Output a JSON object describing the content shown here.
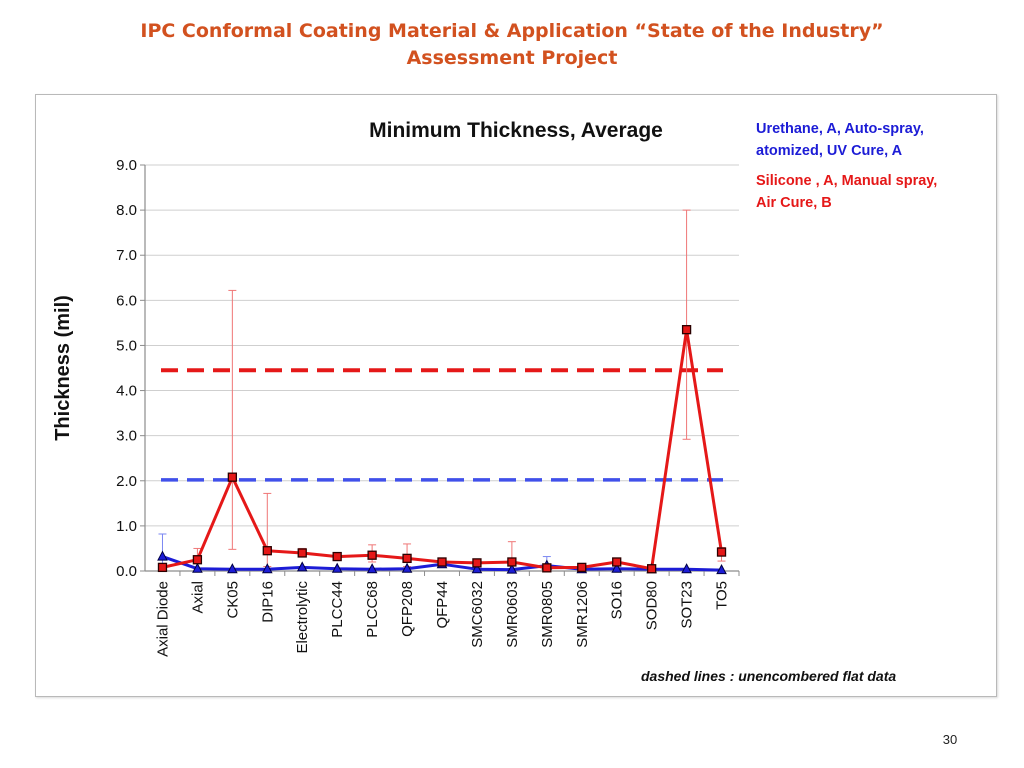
{
  "slide": {
    "title_line1": "IPC Conformal Coating Material & Application “State of the Industry”",
    "title_line2": "Assessment Project",
    "page_number": "30"
  },
  "colors": {
    "title": "#d2511f",
    "urethane": "#1c1cd6",
    "silicone": "#e51818",
    "urethane_dashed": "#4050ea",
    "silicone_dashed": "#e51818"
  },
  "chart_data": {
    "type": "line",
    "title": "Minimum Thickness, Average",
    "ylabel": "Thickness (mil)",
    "xlabel": "",
    "ylim": [
      0,
      9
    ],
    "yticks": [
      "0.0",
      "1.0",
      "2.0",
      "3.0",
      "4.0",
      "5.0",
      "6.0",
      "7.0",
      "8.0",
      "9.0"
    ],
    "grid": true,
    "legend_position": "top-right",
    "categories": [
      "Axial Diode",
      "Axial",
      "CK05",
      "DIP16",
      "Electrolytic",
      "PLCC44",
      "PLCC68",
      "QFP208",
      "QFP44",
      "SMC6032",
      "SMR0603",
      "SMR0805",
      "SMR1206",
      "SO16",
      "SOD80",
      "SOT23",
      "TO5"
    ],
    "series": [
      {
        "name": "Urethane, A, Auto-spray, atomized, UV Cure, A",
        "legend_lines": [
          "Urethane, A, Auto-spray,",
          "atomized, UV Cure, A"
        ],
        "color": "#1c1cd6",
        "marker": "triangle",
        "values": [
          0.32,
          0.05,
          0.04,
          0.04,
          0.08,
          0.05,
          0.04,
          0.05,
          0.15,
          0.04,
          0.03,
          0.12,
          0.04,
          0.05,
          0.04,
          0.04,
          0.02
        ],
        "error_high": [
          0.82,
          0.1,
          0.06,
          0.06,
          0.12,
          0.08,
          0.06,
          0.08,
          0.22,
          0.06,
          0.05,
          0.32,
          0.06,
          0.08,
          0.06,
          0.06,
          0.04
        ],
        "error_low": [
          0.0,
          0.0,
          0.02,
          0.02,
          0.04,
          0.02,
          0.02,
          0.02,
          0.08,
          0.02,
          0.01,
          0.0,
          0.02,
          0.02,
          0.02,
          0.02,
          0.0
        ],
        "reference_line": 2.02
      },
      {
        "name": "Silicone , A, Manual spray, Air Cure, B",
        "legend_lines": [
          "Silicone , A, Manual spray,",
          "Air Cure, B"
        ],
        "color": "#e51818",
        "marker": "square",
        "values": [
          0.08,
          0.25,
          2.08,
          0.45,
          0.4,
          0.32,
          0.35,
          0.28,
          0.2,
          0.18,
          0.2,
          0.07,
          0.08,
          0.2,
          0.05,
          5.35,
          0.42
        ],
        "error_high": [
          0.15,
          0.5,
          6.22,
          1.72,
          0.5,
          0.4,
          0.58,
          0.6,
          0.28,
          0.25,
          0.65,
          0.12,
          0.12,
          0.28,
          0.08,
          8.0,
          0.52
        ],
        "error_low": [
          0.02,
          0.05,
          0.48,
          0.1,
          0.32,
          0.25,
          0.2,
          0.1,
          0.12,
          0.12,
          0.05,
          0.02,
          0.04,
          0.12,
          0.02,
          2.92,
          0.22
        ],
        "reference_line": 4.45
      }
    ],
    "annotation": "dashed lines : unencombered flat data"
  }
}
